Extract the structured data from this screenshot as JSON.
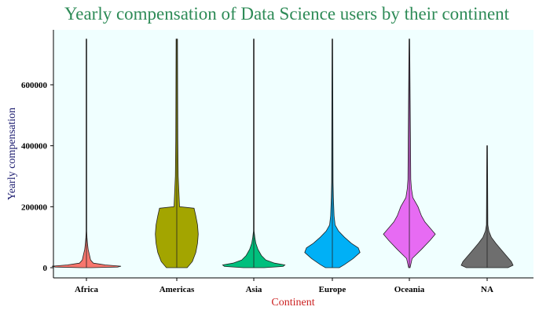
{
  "chart_data": {
    "type": "violin",
    "title": "Yearly compensation of Data Science users by their continent",
    "xlabel": "Continent",
    "ylabel": "Yearly compensation",
    "categories": [
      "Africa",
      "Americas",
      "Asia",
      "Europe",
      "Oceania",
      "NA"
    ],
    "ylim": [
      -30000,
      780000
    ],
    "yticks": [
      0,
      200000,
      400000,
      600000
    ],
    "ytick_labels": [
      "0",
      "200000",
      "400000",
      "600000"
    ],
    "grid": false,
    "legend": "none",
    "series": [
      {
        "category": "Africa",
        "color": "#f8766d",
        "min": 0,
        "max": 750000,
        "median": 5000,
        "profile": [
          [
            0,
            0.15
          ],
          [
            2000,
            0.9
          ],
          [
            5000,
            1.0
          ],
          [
            9000,
            0.55
          ],
          [
            15000,
            0.2
          ],
          [
            25000,
            0.12
          ],
          [
            40000,
            0.09
          ],
          [
            60000,
            0.05
          ],
          [
            80000,
            0.03
          ],
          [
            100000,
            0.015
          ],
          [
            120000,
            0.01
          ],
          [
            150000,
            0.004
          ],
          [
            750000,
            0.004
          ]
        ]
      },
      {
        "category": "Americas",
        "color": "#a3a500",
        "min": 0,
        "max": 750000,
        "median": 70000,
        "profile": [
          [
            0,
            0.3
          ],
          [
            20000,
            0.45
          ],
          [
            50000,
            0.55
          ],
          [
            80000,
            0.6
          ],
          [
            110000,
            0.62
          ],
          [
            140000,
            0.6
          ],
          [
            170000,
            0.55
          ],
          [
            195000,
            0.5
          ],
          [
            200000,
            0.08
          ],
          [
            300000,
            0.04
          ],
          [
            420000,
            0.03
          ],
          [
            750000,
            0.02
          ]
        ]
      },
      {
        "category": "Asia",
        "color": "#00bf7d",
        "min": 0,
        "max": 750000,
        "median": 10000,
        "profile": [
          [
            0,
            0.3
          ],
          [
            4000,
            0.85
          ],
          [
            9000,
            0.9
          ],
          [
            15000,
            0.6
          ],
          [
            25000,
            0.35
          ],
          [
            40000,
            0.22
          ],
          [
            60000,
            0.12
          ],
          [
            80000,
            0.06
          ],
          [
            100000,
            0.03
          ],
          [
            120000,
            0.01
          ],
          [
            750000,
            0.006
          ]
        ]
      },
      {
        "category": "Europe",
        "color": "#00b0f6",
        "min": 0,
        "max": 750000,
        "median": 55000,
        "profile": [
          [
            0,
            0.2
          ],
          [
            10000,
            0.35
          ],
          [
            30000,
            0.6
          ],
          [
            50000,
            0.8
          ],
          [
            65000,
            0.75
          ],
          [
            80000,
            0.55
          ],
          [
            100000,
            0.35
          ],
          [
            120000,
            0.18
          ],
          [
            140000,
            0.08
          ],
          [
            170000,
            0.05
          ],
          [
            230000,
            0.03
          ],
          [
            280000,
            0.02
          ],
          [
            750000,
            0.008
          ]
        ]
      },
      {
        "category": "Oceania",
        "color": "#e76bf3",
        "min": 0,
        "max": 750000,
        "median": 110000,
        "profile": [
          [
            0,
            0.02
          ],
          [
            30000,
            0.08
          ],
          [
            60000,
            0.35
          ],
          [
            90000,
            0.6
          ],
          [
            110000,
            0.75
          ],
          [
            130000,
            0.6
          ],
          [
            150000,
            0.45
          ],
          [
            170000,
            0.35
          ],
          [
            200000,
            0.25
          ],
          [
            230000,
            0.1
          ],
          [
            260000,
            0.06
          ],
          [
            290000,
            0.04
          ],
          [
            750000,
            0.008
          ]
        ]
      },
      {
        "category": "NA",
        "color": "#6e6e6e",
        "min": 0,
        "max": 400000,
        "median": 20000,
        "profile": [
          [
            0,
            0.6
          ],
          [
            8000,
            0.75
          ],
          [
            20000,
            0.7
          ],
          [
            40000,
            0.55
          ],
          [
            60000,
            0.4
          ],
          [
            80000,
            0.25
          ],
          [
            100000,
            0.12
          ],
          [
            120000,
            0.05
          ],
          [
            140000,
            0.02
          ],
          [
            400000,
            0.008
          ]
        ]
      }
    ]
  }
}
